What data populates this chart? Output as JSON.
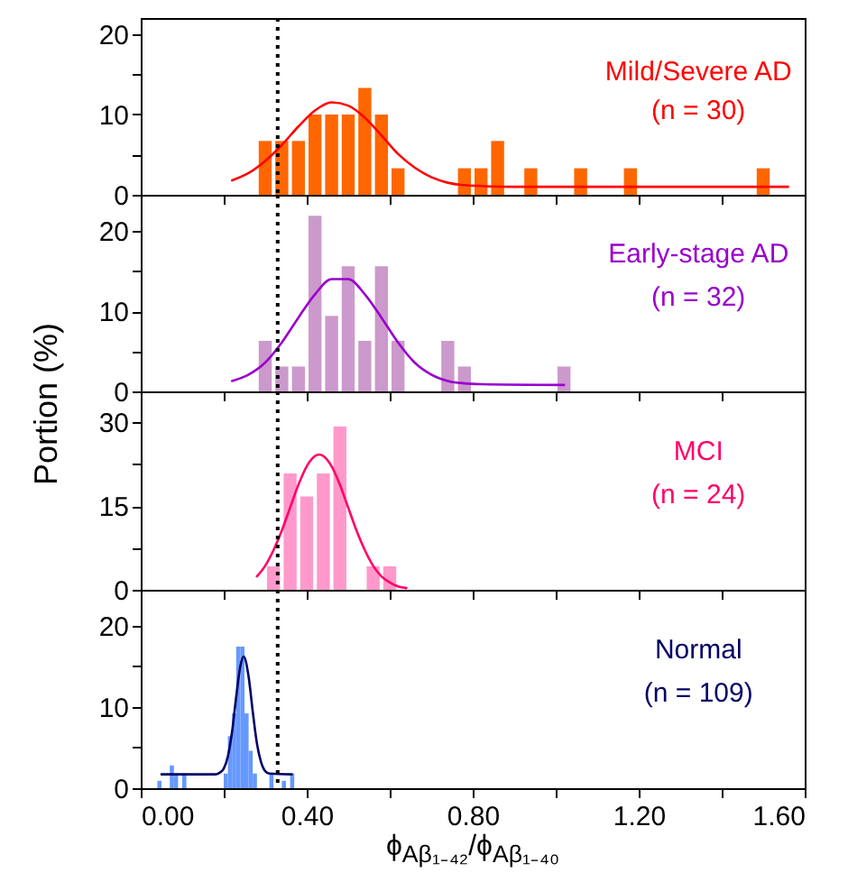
{
  "chart_data": [
    {
      "type": "histogram",
      "xlim": [
        0,
        1.6
      ],
      "ylim": [
        0,
        22
      ],
      "xticks": [
        {
          "value": 0,
          "label": null
        },
        {
          "value": 0.2,
          "label": null
        },
        {
          "value": 0.4,
          "label": null
        },
        {
          "value": 0.6,
          "label": null
        },
        {
          "value": 0.8,
          "label": null
        },
        {
          "value": 1,
          "label": null
        },
        {
          "value": 1.2,
          "label": null
        },
        {
          "value": 1.4,
          "label": null
        },
        {
          "value": 1.6,
          "label": null
        }
      ],
      "yticks": [
        0,
        {
          "value": 5,
          "label": null
        },
        10,
        {
          "value": 15,
          "label": null
        },
        20
      ],
      "tick_labels": "y",
      "series": [
        {
          "type": "histogram",
          "color": "#ff6600",
          "bins": [
            0.28,
            0.32,
            0.36,
            0.4,
            0.44,
            0.48,
            0.52,
            0.56,
            0.6,
            0.64,
            0.68,
            0.72,
            0.76,
            0.8,
            0.84,
            0.88,
            0.92,
            0.96,
            1,
            1.04,
            1.08,
            1.12,
            1.16,
            1.2,
            1.24,
            1.28,
            1.32,
            1.36,
            1.4,
            1.44,
            1.48,
            1.52
          ],
          "values": [
            6.7,
            6.7,
            6.7,
            10,
            10,
            10,
            13.3,
            10,
            3.3,
            0,
            0,
            0,
            3.3,
            3.3,
            6.7,
            0,
            3.3,
            0,
            0,
            3.3,
            0,
            0,
            3.3,
            0,
            0,
            0,
            0,
            0,
            0,
            0,
            3.3
          ]
        },
        {
          "type": "line",
          "color": "#ff0000",
          "x": [
            0.22,
            0.26,
            0.3,
            0.34,
            0.38,
            0.42,
            0.46,
            0.5,
            0.54,
            0.58,
            0.62,
            0.66,
            0.7,
            0.74,
            0.78,
            0.82,
            0.9,
            1.2,
            1.56
          ],
          "values": [
            1.8,
            2.7,
            4.2,
            6.2,
            8.5,
            10.5,
            11.5,
            11.1,
            9.6,
            7.4,
            5.1,
            3.4,
            2.2,
            1.5,
            1.2,
            1.1,
            1,
            1,
            1
          ]
        }
      ],
      "ref_lines": [
        {
          "axis": "x",
          "value": 0.33,
          "color": "#000000",
          "line_style": "dotted"
        }
      ],
      "annotations": [
        "Mild/Severe AD",
        "(n = 30)"
      ]
    },
    {
      "type": "histogram",
      "xlim": [
        0,
        1.6
      ],
      "ylim": [
        0,
        24.5
      ],
      "ylabel": "Portion (%)",
      "xticks": [
        {
          "value": 0,
          "label": null
        },
        {
          "value": 0.2,
          "label": null
        },
        {
          "value": 0.4,
          "label": null
        },
        {
          "value": 0.6,
          "label": null
        },
        {
          "value": 0.8,
          "label": null
        },
        {
          "value": 1,
          "label": null
        },
        {
          "value": 1.2,
          "label": null
        },
        {
          "value": 1.4,
          "label": null
        },
        {
          "value": 1.6,
          "label": null
        }
      ],
      "yticks": [
        0,
        {
          "value": 5,
          "label": null
        },
        10,
        {
          "value": 15,
          "label": null
        },
        20
      ],
      "tick_labels": "y",
      "series": [
        {
          "type": "histogram",
          "color": "#cc99cc",
          "bins": [
            0.28,
            0.32,
            0.36,
            0.4,
            0.44,
            0.48,
            0.52,
            0.56,
            0.6,
            0.64,
            0.68,
            0.72,
            0.76,
            0.8,
            0.84,
            0.88,
            0.92,
            0.96,
            1,
            1.04
          ],
          "values": [
            6.3,
            3.1,
            3.1,
            21.9,
            9.4,
            15.6,
            6.3,
            15.6,
            6.3,
            0,
            0,
            6.3,
            3.1,
            0,
            0,
            0,
            0,
            0,
            3.1
          ]
        },
        {
          "type": "line",
          "color": "#9900cc",
          "x": [
            0.22,
            0.26,
            0.3,
            0.34,
            0.38,
            0.42,
            0.46,
            0.5,
            0.54,
            0.58,
            0.62,
            0.66,
            0.7,
            0.74,
            0.78,
            0.82,
            1.02
          ],
          "values": [
            1.3,
            2.1,
            3.6,
            6.1,
            9.2,
            12.1,
            14,
            14,
            12.1,
            9.2,
            6.1,
            3.6,
            2.1,
            1.3,
            1,
            0.9,
            0.8
          ]
        }
      ],
      "ref_lines": [
        {
          "axis": "x",
          "value": 0.33,
          "color": "#000000",
          "line_style": "dotted"
        }
      ],
      "annotations": [
        "Early-stage AD",
        "(n = 32)"
      ]
    },
    {
      "type": "histogram",
      "xlim": [
        0,
        1.6
      ],
      "ylim": [
        0,
        35.5
      ],
      "xticks": [
        {
          "value": 0,
          "label": null
        },
        {
          "value": 0.2,
          "label": null
        },
        {
          "value": 0.4,
          "label": null
        },
        {
          "value": 0.6,
          "label": null
        },
        {
          "value": 0.8,
          "label": null
        },
        {
          "value": 1,
          "label": null
        },
        {
          "value": 1.2,
          "label": null
        },
        {
          "value": 1.4,
          "label": null
        },
        {
          "value": 1.6,
          "label": null
        }
      ],
      "yticks": [
        0,
        {
          "value": 7.5,
          "label": null
        },
        15,
        {
          "value": 22.5,
          "label": null
        },
        30
      ],
      "tick_labels": "y",
      "series": [
        {
          "type": "histogram",
          "color": "#ff99cc",
          "bins": [
            0.3,
            0.34,
            0.38,
            0.42,
            0.46,
            0.5,
            0.54,
            0.58,
            0.62
          ],
          "values": [
            4.2,
            20.8,
            16.7,
            20.8,
            29.2,
            0,
            4.2,
            4.2
          ]
        },
        {
          "type": "line",
          "color": "#ff0066",
          "x": [
            0.28,
            0.3,
            0.32,
            0.34,
            0.36,
            0.38,
            0.4,
            0.43,
            0.46,
            0.48,
            0.5,
            0.52,
            0.54,
            0.56,
            0.58,
            0.6,
            0.62,
            0.64
          ],
          "values": [
            2.4,
            4.3,
            7.1,
            10.6,
            14.7,
            18.8,
            22.1,
            24.2,
            22.1,
            18.8,
            14.7,
            10.6,
            7.1,
            4.3,
            2.4,
            1.3,
            0.6,
            0.3
          ]
        }
      ],
      "ref_lines": [
        {
          "axis": "x",
          "value": 0.33,
          "color": "#000000",
          "line_style": "dotted"
        }
      ],
      "annotations": [
        "MCI",
        "(n = 24)"
      ]
    },
    {
      "type": "histogram",
      "xlim": [
        0,
        1.6
      ],
      "ylim": [
        0,
        24.4
      ],
      "xlabel": "ϕ$_{Aβ₁₋₄₂}$/ϕ$_{Aβ₁₋₄₀}$",
      "xticks": [
        {
          "value": 0,
          "label": "0.00"
        },
        {
          "value": 0.2,
          "label": null
        },
        {
          "value": 0.4,
          "label": "0.40"
        },
        {
          "value": 0.6,
          "label": null
        },
        {
          "value": 0.8,
          "label": "0.80"
        },
        {
          "value": 1,
          "label": null
        },
        {
          "value": 1.2,
          "label": "1.20"
        },
        {
          "value": 1.4,
          "label": null
        },
        {
          "value": 1.6,
          "label": "1.60"
        }
      ],
      "yticks": [
        0,
        {
          "value": 5,
          "label": null
        },
        10,
        {
          "value": 15,
          "label": null
        },
        20
      ],
      "series": [
        {
          "type": "histogram",
          "color": "#6699ff",
          "bins": [
            0.04,
            0.05,
            0.06,
            0.07,
            0.08,
            0.09,
            0.1,
            0.11,
            0.12,
            0.13,
            0.14,
            0.15,
            0.16,
            0.17,
            0.18,
            0.19,
            0.2,
            0.21,
            0.22,
            0.23,
            0.24,
            0.25,
            0.26,
            0.27,
            0.28,
            0.29,
            0.3,
            0.31,
            0.32,
            0.33,
            0.34,
            0.35,
            0.36,
            0.37
          ],
          "values": [
            0.9,
            0,
            0,
            2.8,
            1.8,
            0,
            1.8,
            0,
            0,
            0,
            0,
            0,
            0,
            0,
            0,
            0,
            1.8,
            6.4,
            9.2,
            17.4,
            17.4,
            9.2,
            4.6,
            1.8,
            0,
            0,
            0,
            1.8,
            0,
            0,
            0.9,
            0,
            1.8
          ]
        },
        {
          "type": "line",
          "color": "#000066",
          "x": [
            0.05,
            0.18,
            0.19,
            0.2,
            0.21,
            0.22,
            0.23,
            0.24,
            0.248,
            0.26,
            0.27,
            0.28,
            0.29,
            0.3,
            0.31,
            0.364
          ],
          "values": [
            1.7,
            1.7,
            1.9,
            2.4,
            3.9,
            6.9,
            11.2,
            15,
            16.2,
            13.7,
            9.4,
            5.5,
            3.2,
            2.1,
            1.8,
            1.7
          ]
        }
      ],
      "ref_lines": [
        {
          "axis": "x",
          "value": 0.33,
          "color": "#000000",
          "line_style": "dotted"
        }
      ],
      "annotations": [
        "Normal",
        "(n = 109)"
      ]
    }
  ]
}
